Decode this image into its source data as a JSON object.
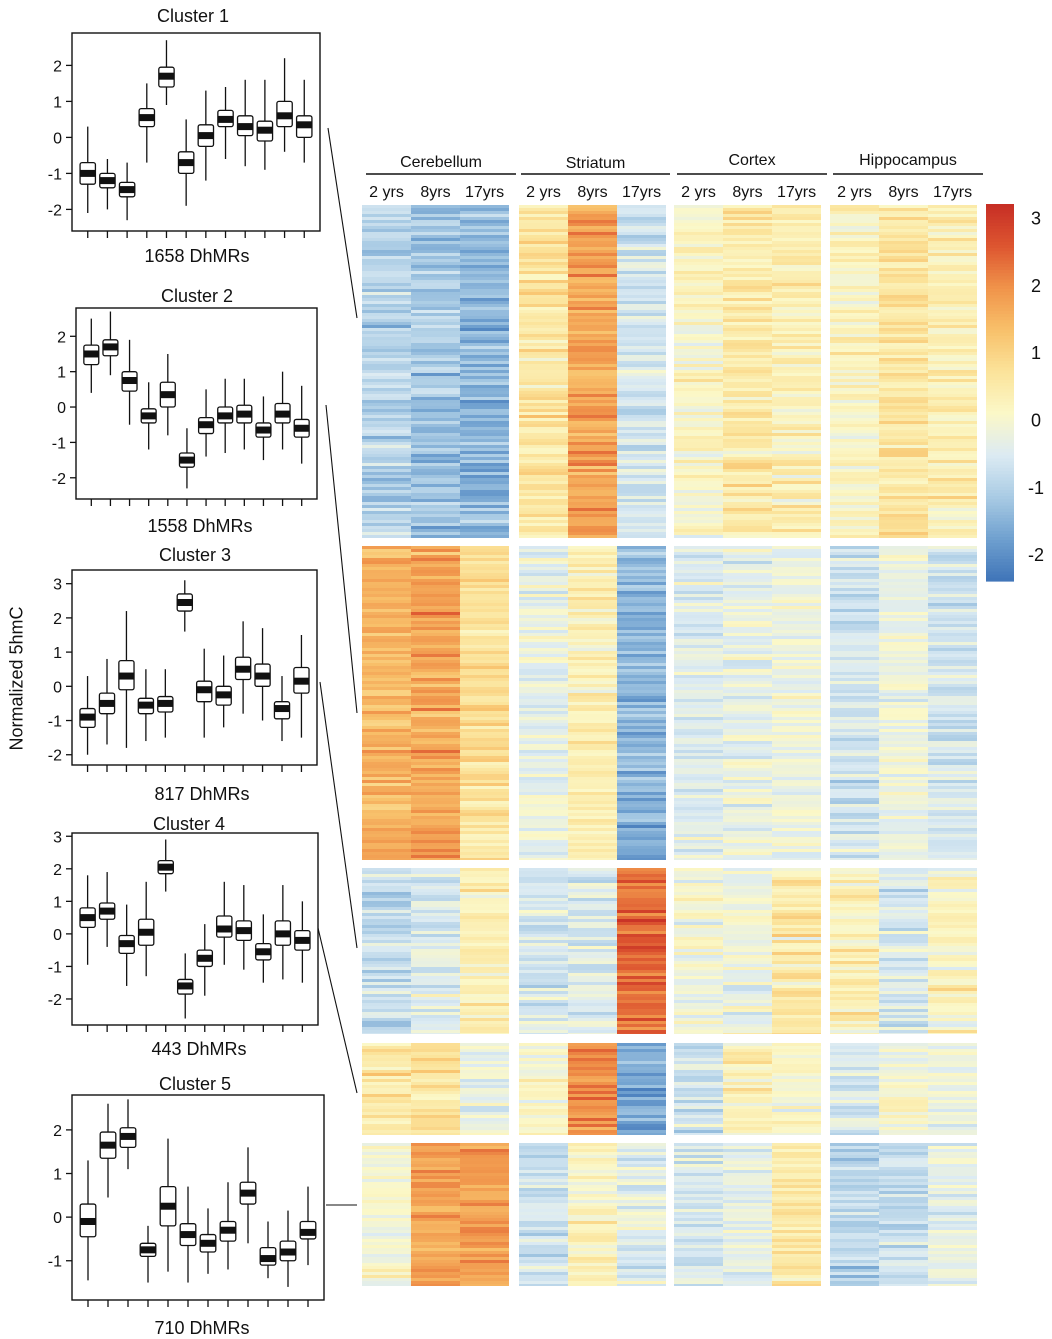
{
  "figure": {
    "ylabel": "Normalized 5hmC",
    "colors": {
      "scale": [
        "#3f74b8",
        "#6fa0cf",
        "#a9cbe4",
        "#dcebf3",
        "#fbf8c8",
        "#fbe39a",
        "#f8c06a",
        "#f0934a",
        "#dd5530",
        "#c62e25"
      ]
    }
  },
  "chart_data": [
    {
      "type": "heatmap",
      "title": "",
      "regions": [
        "Cerebellum",
        "Striatum",
        "Cortex",
        "Hippocampus"
      ],
      "ages": [
        "2 yrs",
        "8yrs",
        "17yrs"
      ],
      "row_blocks": [
        "Cluster 1",
        "Cluster 2",
        "Cluster 3",
        "Cluster 4",
        "Cluster 5"
      ],
      "block_means": [
        [
          [
            -1.0,
            -1.2,
            -1.45
          ],
          [
            0.6,
            1.7,
            -0.7
          ],
          [
            0.1,
            0.5,
            0.35
          ],
          [
            0.2,
            0.6,
            0.35
          ]
        ],
        [
          [
            1.5,
            1.7,
            0.75
          ],
          [
            -0.25,
            0.35,
            -1.5
          ],
          [
            -0.5,
            -0.25,
            -0.2
          ],
          [
            -0.65,
            -0.2,
            -0.6
          ]
        ],
        [
          [
            -0.85,
            -0.45,
            0.3
          ],
          [
            -0.55,
            -0.45,
            2.4
          ],
          [
            -0.1,
            -0.2,
            0.5
          ],
          [
            0.3,
            -0.6,
            0.15
          ]
        ],
        [
          [
            0.5,
            0.7,
            -0.3
          ],
          [
            0.05,
            2.05,
            -1.6
          ],
          [
            -0.7,
            0.2,
            0.1
          ],
          [
            -0.5,
            0.0,
            -0.2
          ]
        ],
        [
          [
            0.0,
            1.7,
            1.8
          ],
          [
            -0.7,
            0.2,
            -0.4
          ],
          [
            -0.55,
            -0.3,
            0.55
          ],
          [
            -0.9,
            -0.8,
            -0.3
          ]
        ]
      ],
      "colorbar": {
        "ticks": [
          "3",
          "2",
          "1",
          "0",
          "-1",
          "-2"
        ],
        "range": [
          -2.4,
          3.2
        ]
      }
    },
    {
      "type": "box",
      "title": "Cluster 1",
      "footer": "1658 DhMRs",
      "yticks": [
        "2",
        "1",
        "0",
        "-1",
        "-2"
      ],
      "ylim": [
        -2.6,
        2.9
      ],
      "stats": [
        [
          -2.1,
          -1.3,
          -1.0,
          -0.7,
          0.3
        ],
        [
          -2.0,
          -1.4,
          -1.2,
          -1.0,
          -0.6
        ],
        [
          -2.3,
          -1.65,
          -1.45,
          -1.25,
          -0.7
        ],
        [
          -0.7,
          0.3,
          0.55,
          0.8,
          1.5
        ],
        [
          0.9,
          1.4,
          1.7,
          1.95,
          2.7
        ],
        [
          -1.9,
          -1.0,
          -0.7,
          -0.4,
          0.5
        ],
        [
          -1.2,
          -0.25,
          0.05,
          0.35,
          1.3
        ],
        [
          -0.6,
          0.3,
          0.5,
          0.75,
          1.4
        ],
        [
          -0.8,
          0.05,
          0.3,
          0.6,
          1.6
        ],
        [
          -0.9,
          -0.1,
          0.2,
          0.45,
          1.6
        ],
        [
          -0.4,
          0.3,
          0.6,
          1.0,
          2.2
        ],
        [
          -0.7,
          0.0,
          0.35,
          0.6,
          1.6
        ]
      ]
    },
    {
      "type": "box",
      "title": "Cluster 2",
      "footer": "1558 DhMRs",
      "yticks": [
        "2",
        "1",
        "0",
        "-1",
        "-2"
      ],
      "ylim": [
        -2.6,
        2.8
      ],
      "stats": [
        [
          0.4,
          1.2,
          1.5,
          1.75,
          2.5
        ],
        [
          0.9,
          1.45,
          1.7,
          1.9,
          2.7
        ],
        [
          -0.5,
          0.45,
          0.75,
          1.0,
          1.9
        ],
        [
          -1.2,
          -0.45,
          -0.25,
          -0.05,
          0.7
        ],
        [
          -0.8,
          0.0,
          0.35,
          0.7,
          1.5
        ],
        [
          -2.3,
          -1.7,
          -1.5,
          -1.3,
          -0.6
        ],
        [
          -1.4,
          -0.75,
          -0.5,
          -0.3,
          0.5
        ],
        [
          -1.3,
          -0.45,
          -0.25,
          0.0,
          0.8
        ],
        [
          -1.2,
          -0.45,
          -0.2,
          0.05,
          0.8
        ],
        [
          -1.5,
          -0.85,
          -0.65,
          -0.45,
          0.3
        ],
        [
          -1.2,
          -0.45,
          -0.2,
          0.1,
          1.0
        ],
        [
          -1.6,
          -0.85,
          -0.6,
          -0.35,
          0.6
        ]
      ]
    },
    {
      "type": "box",
      "title": "Cluster 3",
      "footer": "817 DhMRs",
      "yticks": [
        "3",
        "2",
        "1",
        "0",
        "-1",
        "-2"
      ],
      "ylim": [
        -2.3,
        3.4
      ],
      "stats": [
        [
          -2.0,
          -1.2,
          -0.9,
          -0.65,
          0.3
        ],
        [
          -1.7,
          -0.8,
          -0.5,
          -0.2,
          0.8
        ],
        [
          -1.8,
          -0.1,
          0.3,
          0.75,
          2.2
        ],
        [
          -1.6,
          -0.8,
          -0.55,
          -0.35,
          0.5
        ],
        [
          -1.5,
          -0.75,
          -0.5,
          -0.3,
          0.5
        ],
        [
          1.6,
          2.2,
          2.45,
          2.7,
          3.1
        ],
        [
          -1.5,
          -0.45,
          -0.1,
          0.15,
          1.1
        ],
        [
          -1.2,
          -0.55,
          -0.25,
          0.0,
          0.9
        ],
        [
          -0.8,
          0.2,
          0.5,
          0.85,
          1.9
        ],
        [
          -1.0,
          0.0,
          0.3,
          0.65,
          1.7
        ],
        [
          -1.6,
          -0.95,
          -0.65,
          -0.45,
          0.3
        ],
        [
          -1.5,
          -0.2,
          0.15,
          0.55,
          1.5
        ]
      ]
    },
    {
      "type": "box",
      "title": "Cluster 4",
      "footer": "443 DhMRs",
      "yticks": [
        "3",
        "2",
        "1",
        "0",
        "-1",
        "-2"
      ],
      "ylim": [
        -2.8,
        3.1
      ],
      "stats": [
        [
          -0.95,
          0.2,
          0.5,
          0.8,
          1.8
        ],
        [
          -0.4,
          0.45,
          0.7,
          0.95,
          1.9
        ],
        [
          -1.6,
          -0.6,
          -0.3,
          -0.05,
          0.9
        ],
        [
          -1.3,
          -0.35,
          0.05,
          0.45,
          1.6
        ],
        [
          1.3,
          1.85,
          2.05,
          2.25,
          2.9
        ],
        [
          -2.6,
          -1.85,
          -1.6,
          -1.4,
          -0.6
        ],
        [
          -1.9,
          -1.0,
          -0.75,
          -0.5,
          0.3
        ],
        [
          -0.95,
          -0.1,
          0.15,
          0.55,
          1.6
        ],
        [
          -1.1,
          -0.2,
          0.1,
          0.4,
          1.5
        ],
        [
          -1.5,
          -0.8,
          -0.55,
          -0.3,
          0.6
        ],
        [
          -1.4,
          -0.35,
          0.0,
          0.4,
          1.5
        ],
        [
          -1.5,
          -0.5,
          -0.2,
          0.1,
          1.0
        ]
      ]
    },
    {
      "type": "box",
      "title": "Cluster 5",
      "footer": "710 DhMRs",
      "yticks": [
        "2",
        "1",
        "0",
        "-1"
      ],
      "ylim": [
        -1.9,
        2.8
      ],
      "stats": [
        [
          -1.45,
          -0.45,
          -0.1,
          0.3,
          1.3
        ],
        [
          0.45,
          1.35,
          1.65,
          1.95,
          2.6
        ],
        [
          1.1,
          1.6,
          1.85,
          2.05,
          2.7
        ],
        [
          -1.5,
          -0.9,
          -0.75,
          -0.6,
          -0.2
        ],
        [
          -1.25,
          -0.2,
          0.25,
          0.7,
          1.8
        ],
        [
          -1.5,
          -0.65,
          -0.4,
          -0.15,
          0.7
        ],
        [
          -1.3,
          -0.8,
          -0.6,
          -0.4,
          0.2
        ],
        [
          -1.2,
          -0.55,
          -0.3,
          -0.1,
          0.8
        ],
        [
          -0.6,
          0.3,
          0.55,
          0.8,
          1.6
        ],
        [
          -1.4,
          -1.1,
          -0.95,
          -0.7,
          -0.1
        ],
        [
          -1.6,
          -1.0,
          -0.8,
          -0.55,
          0.15
        ],
        [
          -1.1,
          -0.5,
          -0.35,
          -0.1,
          0.7
        ]
      ]
    }
  ]
}
